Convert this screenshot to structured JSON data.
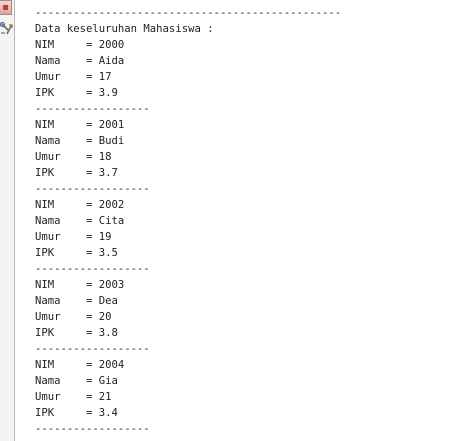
{
  "console": {
    "lines": [
      "------------------------------------------------",
      "Data keseluruhan Mahasiswa :",
      "NIM     = 2000",
      "Nama    = Aida",
      "Umur    = 17",
      "IPK     = 3.9",
      "------------------",
      "NIM     = 2001",
      "Nama    = Budi",
      "Umur    = 18",
      "IPK     = 3.7",
      "------------------",
      "NIM     = 2002",
      "Nama    = Cita",
      "Umur    = 19",
      "IPK     = 3.5",
      "------------------",
      "NIM     = 2003",
      "Nama    = Dea",
      "Umur    = 20",
      "IPK     = 3.8",
      "------------------",
      "NIM     = 2004",
      "Nama    = Gia",
      "Umur    = 21",
      "IPK     = 3.4",
      "------------------"
    ]
  },
  "icons": {
    "stop": "stop-icon",
    "tools": "tools-icon"
  }
}
